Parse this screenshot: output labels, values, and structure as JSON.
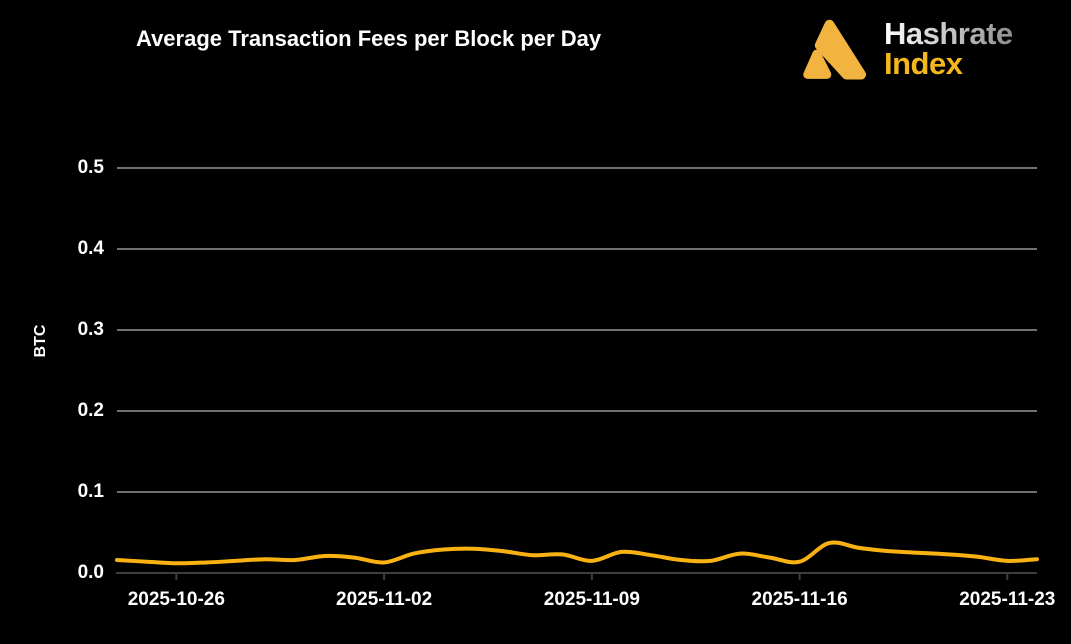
{
  "header": {
    "title": "Average Transaction Fees per Block per Day"
  },
  "logo": {
    "brand_top": "Hashrate",
    "brand_bottom": "Index",
    "mark_color": "#F2B43E",
    "brand_top_gradient": [
      "#ffffff",
      "#8d8d8d"
    ],
    "brand_bottom_color": "#F5B81C"
  },
  "chart_data": {
    "type": "line",
    "title": "Average Transaction Fees per Block per Day",
    "xlabel": "",
    "ylabel": "BTC",
    "x": [
      "2025-10-24",
      "2025-10-25",
      "2025-10-26",
      "2025-10-27",
      "2025-10-28",
      "2025-10-29",
      "2025-10-30",
      "2025-10-31",
      "2025-11-01",
      "2025-11-02",
      "2025-11-03",
      "2025-11-04",
      "2025-11-05",
      "2025-11-06",
      "2025-11-07",
      "2025-11-08",
      "2025-11-09",
      "2025-11-10",
      "2025-11-11",
      "2025-11-12",
      "2025-11-13",
      "2025-11-14",
      "2025-11-15",
      "2025-11-16",
      "2025-11-17",
      "2025-11-18",
      "2025-11-19",
      "2025-11-20",
      "2025-11-21",
      "2025-11-22",
      "2025-11-23",
      "2025-11-24"
    ],
    "series": [
      {
        "name": "avg-transaction-fees-per-block",
        "color": "#F9B212",
        "values": [
          0.016,
          0.014,
          0.012,
          0.013,
          0.015,
          0.017,
          0.016,
          0.021,
          0.019,
          0.013,
          0.024,
          0.029,
          0.03,
          0.027,
          0.022,
          0.023,
          0.015,
          0.026,
          0.022,
          0.016,
          0.015,
          0.024,
          0.019,
          0.014,
          0.037,
          0.031,
          0.027,
          0.025,
          0.023,
          0.02,
          0.015,
          0.017
        ]
      }
    ],
    "yticks": [
      "0.0",
      "0.1",
      "0.2",
      "0.3",
      "0.4",
      "0.5"
    ],
    "ylim": [
      0.0,
      0.55
    ],
    "xtick_labels": [
      "2025-10-26",
      "2025-11-02",
      "2025-11-09",
      "2025-11-16",
      "2025-11-23"
    ],
    "grid": "horizontal",
    "legend": "none",
    "background_color": "#000000",
    "text_color": "#ffffff",
    "grid_color": "#b3b3b3",
    "axis_color": "#3e3e3e"
  }
}
